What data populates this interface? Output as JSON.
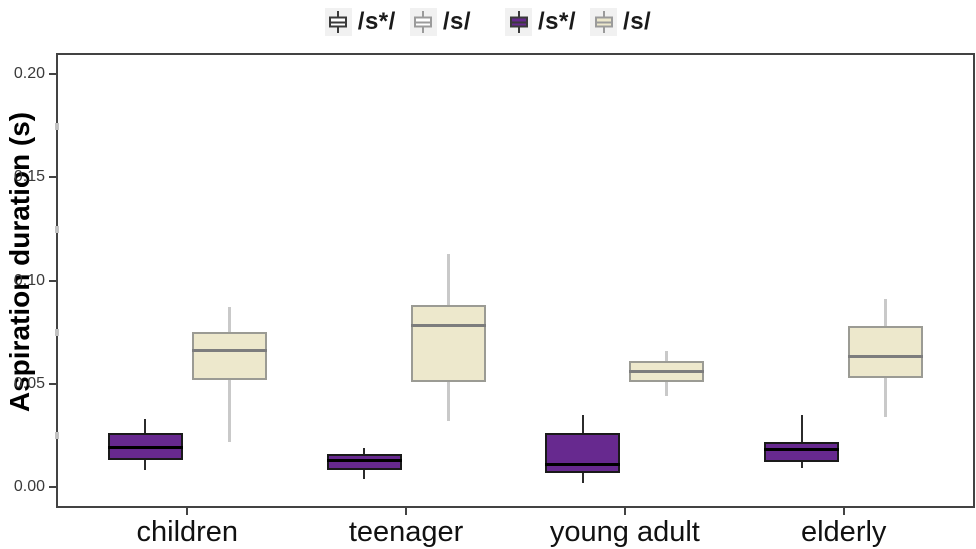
{
  "chart_data": {
    "type": "boxplot",
    "title": "",
    "xlabel": "",
    "ylabel": "Aspiration duration (s)",
    "categories": [
      "children",
      "teenager",
      "young adult",
      "elderly"
    ],
    "y_ticks": [
      "0.00",
      "0.05",
      "0.10",
      "0.15",
      "0.20"
    ],
    "y_minor_ticks": [
      0.025,
      0.075,
      0.125,
      0.175
    ],
    "ylim": [
      0.0,
      0.21
    ],
    "grid": "off",
    "legend_position": "top-center",
    "series": [
      {
        "name": "/s*/",
        "fill": "#67298F",
        "stroke": "#1a1a1a",
        "median_color": "#000000",
        "whisker_color": "#2b2b2b",
        "boxes": [
          {
            "category": "children",
            "min": 0.008,
            "q1": 0.013,
            "median": 0.019,
            "q3": 0.026,
            "max": 0.033
          },
          {
            "category": "teenager",
            "min": 0.004,
            "q1": 0.008,
            "median": 0.013,
            "q3": 0.016,
            "max": 0.019
          },
          {
            "category": "young adult",
            "min": 0.002,
            "q1": 0.007,
            "median": 0.011,
            "q3": 0.026,
            "max": 0.035
          },
          {
            "category": "elderly",
            "min": 0.009,
            "q1": 0.012,
            "median": 0.018,
            "q3": 0.022,
            "max": 0.035
          }
        ]
      },
      {
        "name": "/s/",
        "fill": "#EDE8CC",
        "stroke": "#9B9B94",
        "median_color": "#7d7d7d",
        "whisker_color": "#c9c9c9",
        "boxes": [
          {
            "category": "children",
            "min": 0.022,
            "q1": 0.052,
            "median": 0.066,
            "q3": 0.075,
            "max": 0.087
          },
          {
            "category": "teenager",
            "min": 0.032,
            "q1": 0.051,
            "median": 0.078,
            "q3": 0.088,
            "max": 0.113
          },
          {
            "category": "young adult",
            "min": 0.044,
            "q1": 0.051,
            "median": 0.056,
            "q3": 0.061,
            "max": 0.066
          },
          {
            "category": "elderly",
            "min": 0.034,
            "q1": 0.053,
            "median": 0.063,
            "q3": 0.078,
            "max": 0.091
          }
        ]
      }
    ],
    "legend": {
      "groups": [
        {
          "items": [
            {
              "label": "/s*/",
              "fill": "#FFFFFF",
              "stroke": "#3a3a3a"
            },
            {
              "label": "/s/",
              "fill": "#FFFFFF",
              "stroke": "#9B9B9B"
            }
          ]
        },
        {
          "items": [
            {
              "label": "/s*/",
              "fill": "#67298F",
              "stroke": "#3a3a3a"
            },
            {
              "label": "/s/",
              "fill": "#EDE8CC",
              "stroke": "#9B9B9B"
            }
          ]
        }
      ]
    }
  }
}
